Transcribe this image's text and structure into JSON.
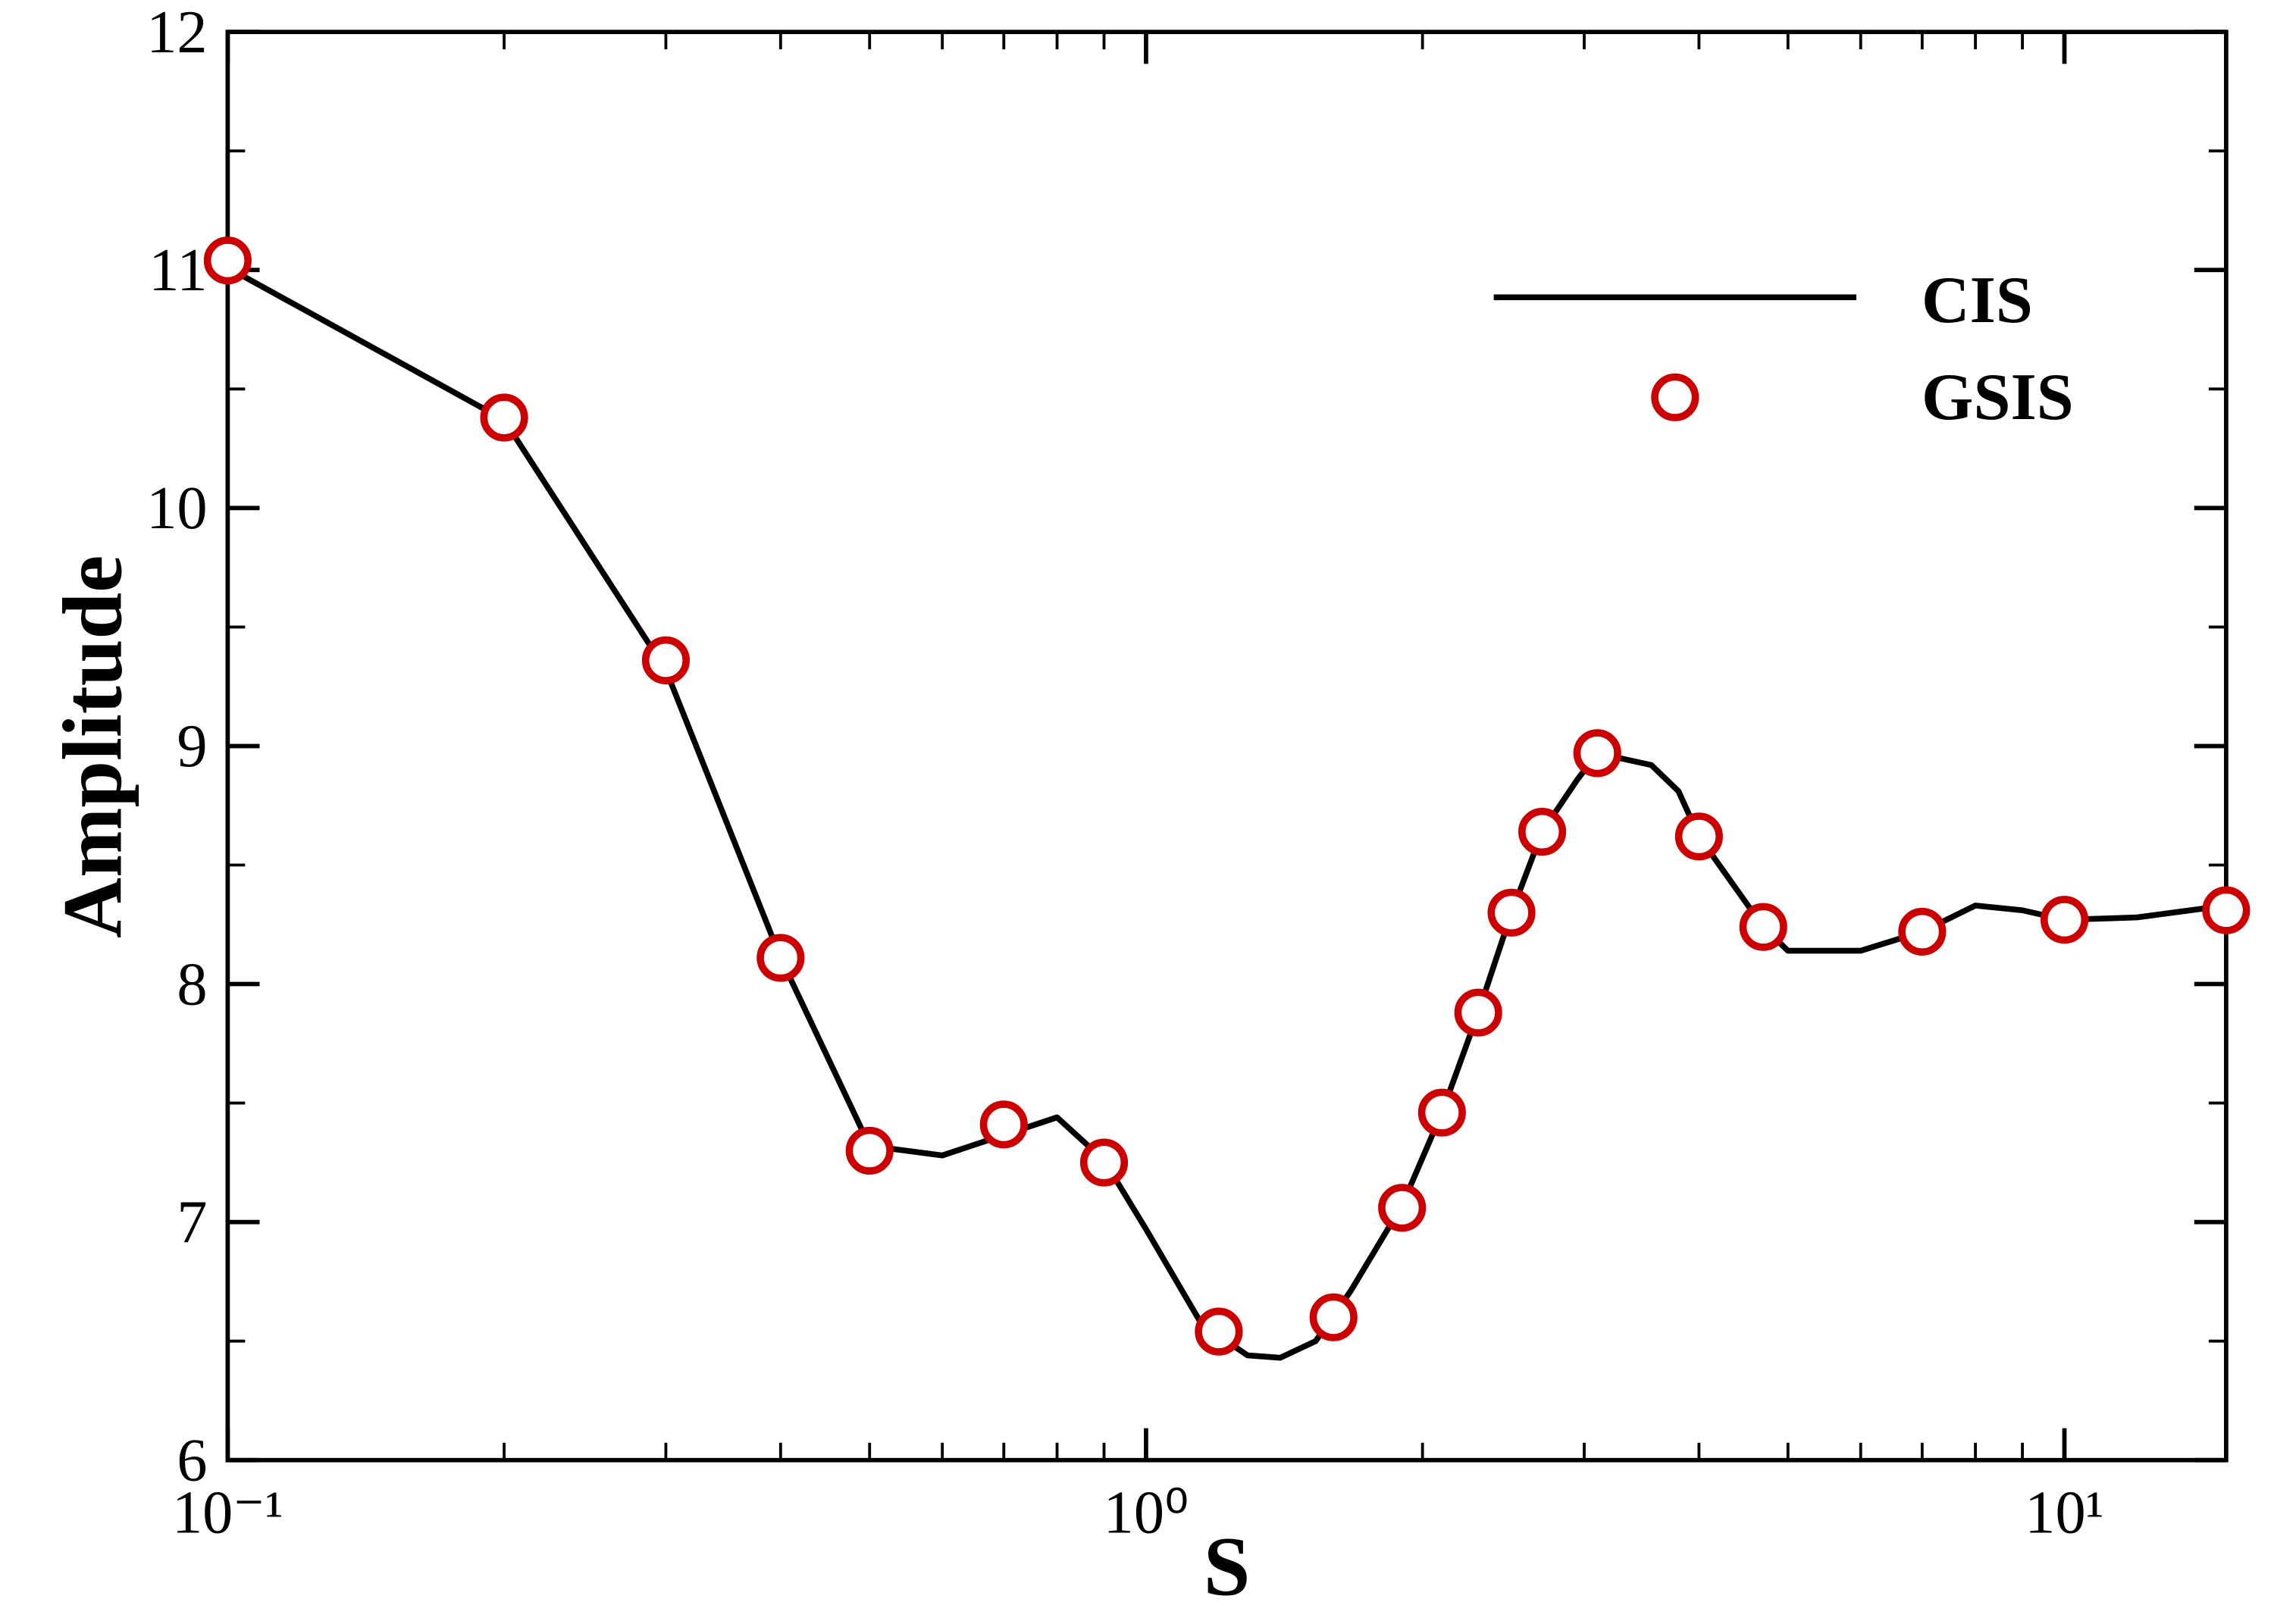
{
  "chart_data": {
    "type": "line",
    "xlabel": "S",
    "ylabel": "Amplitude",
    "xscale": "log",
    "xlim": [
      0.1,
      15
    ],
    "ylim": [
      6,
      12
    ],
    "xticks": [
      {
        "value": 0.1,
        "label": "10⁻¹"
      },
      {
        "value": 1,
        "label": "10⁰"
      },
      {
        "value": 10,
        "label": "10¹"
      }
    ],
    "xminorticks": [
      0.2,
      0.3,
      0.4,
      0.5,
      0.6,
      0.7,
      0.8,
      0.9,
      2,
      3,
      4,
      5,
      6,
      7,
      8,
      9
    ],
    "yticks": [
      6,
      7,
      8,
      9,
      10,
      11,
      12
    ],
    "yminorticks": [
      6.5,
      7.5,
      8.5,
      9.5,
      10.5,
      11.5
    ],
    "legend": "upper right",
    "series": [
      {
        "name": "CIS",
        "color": "#000000",
        "style": "line",
        "x": [
          0.1,
          0.2,
          0.3,
          0.4,
          0.5,
          0.6,
          0.8,
          0.9,
          1.0,
          1.15,
          1.29,
          1.4,
          1.53,
          1.67,
          1.9,
          2.1,
          2.3,
          2.5,
          2.7,
          2.95,
          3.1,
          3.55,
          3.8,
          4.0,
          4.7,
          5.0,
          6.0,
          7.0,
          8.0,
          9.0,
          10,
          12,
          15
        ],
        "values": [
          11.01,
          10.37,
          9.32,
          8.11,
          7.32,
          7.28,
          7.44,
          7.26,
          6.97,
          6.57,
          6.44,
          6.43,
          6.5,
          6.71,
          7.07,
          7.46,
          7.88,
          8.3,
          8.64,
          8.86,
          8.97,
          8.92,
          8.81,
          8.62,
          8.24,
          8.14,
          8.14,
          8.22,
          8.33,
          8.31,
          8.27,
          8.28,
          8.33
        ]
      },
      {
        "name": "GSIS",
        "color": "#cc0000",
        "style": "marker",
        "x": [
          0.1,
          0.2,
          0.3,
          0.4,
          0.5,
          0.7,
          0.9,
          1.2,
          1.6,
          1.9,
          2.1,
          2.3,
          2.5,
          2.7,
          3.1,
          4.0,
          4.7,
          7.0,
          10,
          15
        ],
        "values": [
          11.04,
          10.38,
          9.36,
          8.11,
          7.3,
          7.41,
          7.25,
          6.54,
          6.6,
          7.06,
          7.46,
          7.88,
          8.3,
          8.64,
          8.97,
          8.62,
          8.24,
          8.22,
          8.27,
          8.31
        ]
      }
    ]
  }
}
